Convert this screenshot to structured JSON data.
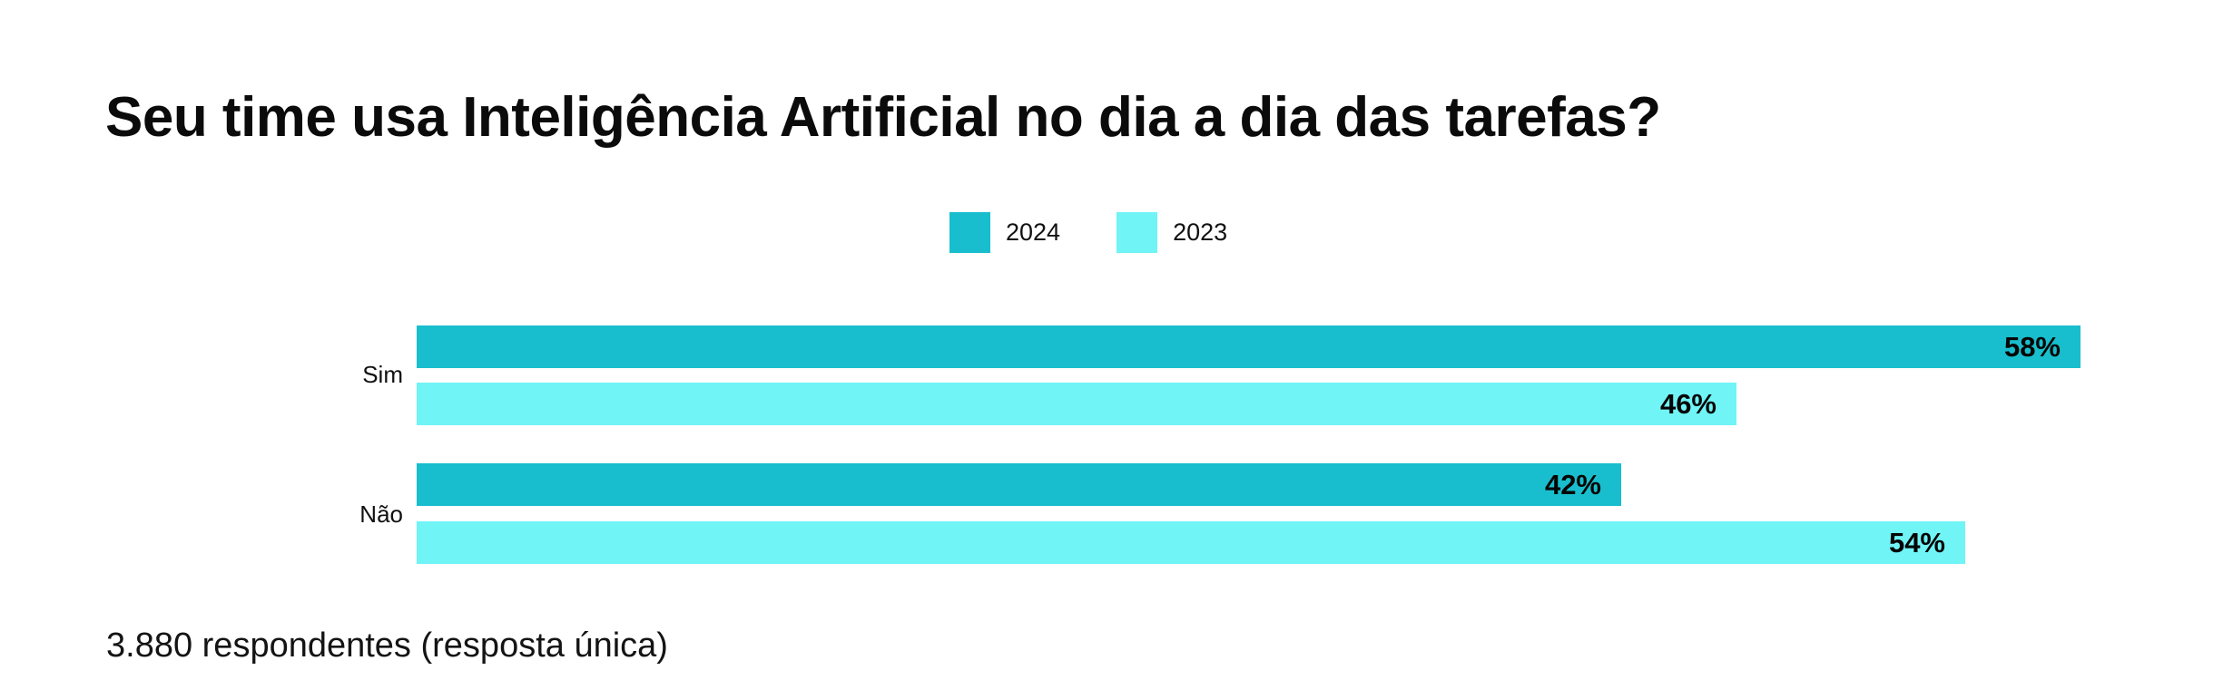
{
  "chart_data": {
    "type": "bar",
    "orientation": "horizontal",
    "title": "Seu time usa Inteligência Artificial no dia a dia das tarefas?",
    "categories": [
      "Sim",
      "Não"
    ],
    "series": [
      {
        "name": "2024",
        "color": "#18BECD",
        "values": [
          58,
          42
        ]
      },
      {
        "name": "2023",
        "color": "#70F4F6",
        "values": [
          46,
          54
        ]
      }
    ],
    "value_suffix": "%",
    "xlim": [
      0,
      58
    ],
    "grid": false,
    "legend_position": "top-center",
    "value_labels": "inside-end",
    "note": "3.880 respondentes (resposta única)",
    "background": "#FFFFFF",
    "text_color": "#0D0D0D"
  }
}
